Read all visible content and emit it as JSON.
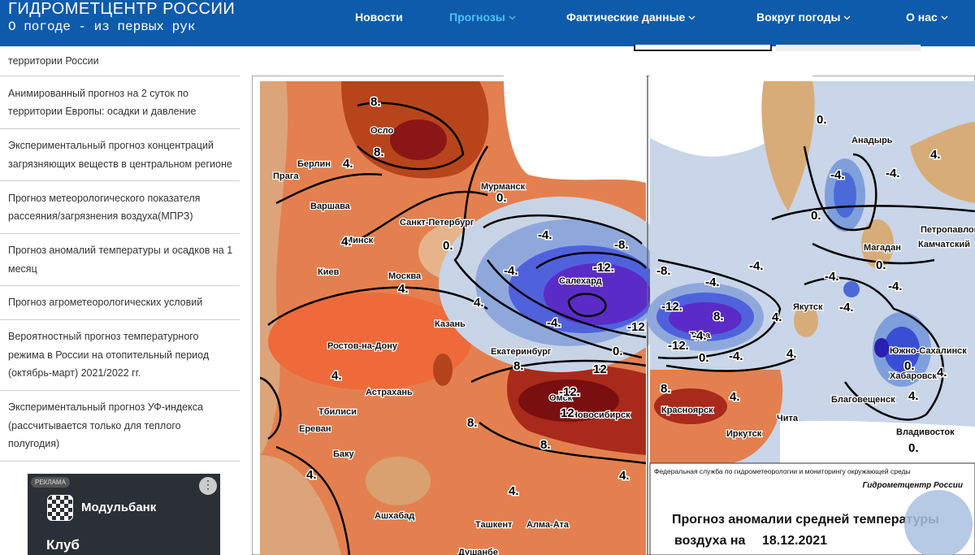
{
  "header": {
    "title": "ГИДРОМЕТЦЕНТР РОССИИ",
    "subtitle": "О погоде - из первых рук",
    "nav": [
      "Новости",
      "Прогнозы",
      "Фактические данные",
      "Вокруг погоды",
      "О нас"
    ]
  },
  "sidebar": {
    "links": [
      "территории России",
      "Анимированный прогноз на 2 суток по территории Европы: осадки и давление",
      "Экспериментальный прогноз концентраций загрязняющих веществ в центральном регионе",
      "Прогноз метеорологического показателя рассеяния/загрязнения воздуха(МПРЗ)",
      "Прогноз аномалий температуры и осадков на 1 месяц",
      "Прогноз агрометеорологических условий",
      "Вероятностный прогноз температурного режима в России на отопительный период (октябрь-март) 2021/2022 гг.",
      "Экспериментальный прогноз УФ-индекса (рассчитывается только для теплого полугодия)"
    ]
  },
  "ad": {
    "tag": "РЕКЛАМА",
    "brand": "Модульбанк",
    "headline": "Клуб"
  },
  "map": {
    "cities": [
      "Осло",
      "Берлин",
      "Прага",
      "Варшава",
      "Минск",
      "Мурманск",
      "Санкт-Петербург",
      "Киев",
      "Москва",
      "Казань",
      "Ростов-на-Дону",
      "Екатеринбург",
      "Астрахань",
      "Омск",
      "Новосибирск",
      "Тбилиси",
      "Ереван",
      "Баку",
      "Ашхабад",
      "Ташкент",
      "Алма-Ата",
      "Душанбе",
      "Салехард",
      "Тура",
      "Якутск",
      "Анадырь",
      "Магадан",
      "Петропавловск",
      "Камчатский",
      "Южно-Сахалинск",
      "Хабаровск",
      "Благовещенск",
      "Красноярск",
      "Иркутск",
      "Чита",
      "Владивосток"
    ],
    "contour_labels": [
      "8.",
      "8.",
      "4.",
      "0.",
      "0.",
      "-4.",
      "-8.",
      "-12.",
      "-4.",
      "4.",
      "4.",
      "4.",
      "-4.",
      "-12",
      "0.",
      "8.",
      "12",
      "-12.",
      "12",
      "8.",
      "8.",
      "4.",
      "4.",
      "4.",
      "4.",
      "0.",
      "0.",
      "-4.",
      "-4.",
      "4.",
      "-8.",
      "-4.",
      "-4.",
      "-12.",
      "8.",
      "4.",
      "-4.",
      "-12.",
      "0.",
      "-4.",
      "4.",
      "0.",
      "-4.",
      "-4.",
      "-4.",
      "0.",
      "4.",
      "4.",
      "0.",
      "8.",
      "4."
    ],
    "caption": {
      "agency": "Федеральная служба по гидрометеорологии и мониторингу окружающей среды",
      "center": "Гидрометцентр России",
      "title_line1": "Прогноз аномалии средней температуры",
      "title_line2": "воздуха на",
      "date": "18.12.2021"
    }
  }
}
